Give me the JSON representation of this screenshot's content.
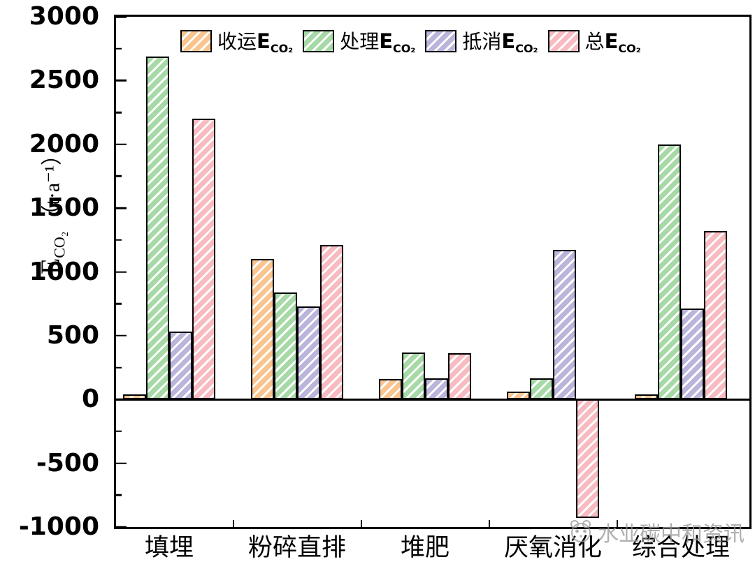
{
  "chart_data": {
    "type": "bar",
    "title": "",
    "categories": [
      "填埋",
      "粉碎直排",
      "堆肥",
      "厌氧消化",
      "综合处理"
    ],
    "series": [
      {
        "name": "收运ECO₂",
        "label": "收运",
        "color": "#F9C48E",
        "values": [
          40,
          1100,
          160,
          60,
          40
        ]
      },
      {
        "name": "处理ECO₂",
        "label": "处理",
        "color": "#A6D9A6",
        "values": [
          2690,
          840,
          370,
          165,
          2000
        ]
      },
      {
        "name": "抵消ECO₂",
        "label": "抵消",
        "color": "#BBB5DB",
        "values": [
          530,
          730,
          165,
          1170,
          715
        ]
      },
      {
        "name": "总ECO₂",
        "label": "总",
        "color": "#F8BBC2",
        "values": [
          2200,
          1210,
          360,
          -930,
          1320
        ]
      }
    ],
    "ylabel": "ECO₂（t·a⁻¹）",
    "ylim": [
      -1000,
      3000
    ],
    "ytick_step": 500,
    "yticks": [
      "3000",
      "2500",
      "2000",
      "1500",
      "1000",
      "500",
      "0",
      "-500",
      "-1000"
    ],
    "minor_tick_step": 250,
    "legend_position": "top-inside",
    "grid": false,
    "hatch": "white-diagonal-stripes"
  },
  "axis": {
    "symbol": "E",
    "subscript": "CO₂",
    "unit": "（t·a⁻¹）"
  },
  "legend": {
    "symbol": "E",
    "subscript": "CO₂"
  },
  "watermark": {
    "text": "水业碳中和资讯"
  },
  "colors": {
    "bar_border": "#000000",
    "hatch_stripe": "#ffffff",
    "frame": "#000000",
    "watermark": "#9b9b9b"
  }
}
